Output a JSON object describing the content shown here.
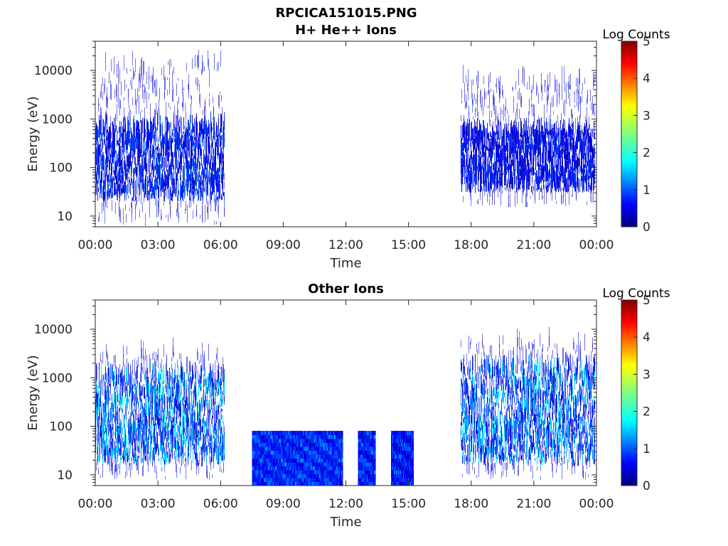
{
  "figure_title": "RPCICA151015.PNG",
  "chart_data": [
    {
      "type": "heatmap",
      "title": "H+ He++ Ions",
      "xlabel": "Time",
      "ylabel": "Energy (eV)",
      "x_scale": "time",
      "x_range": [
        "00:00",
        "24:00"
      ],
      "x_tick_labels": [
        "00:00",
        "03:00",
        "06:00",
        "09:00",
        "12:00",
        "15:00",
        "18:00",
        "21:00",
        "00:00"
      ],
      "y_scale": "log",
      "y_range": [
        6,
        40000
      ],
      "y_tick_labels": [
        "10",
        "100",
        "1000",
        "10000"
      ],
      "colorbar": {
        "label": "Log Counts",
        "range": [
          0,
          5
        ],
        "tick_labels": [
          "0",
          "1",
          "2",
          "3",
          "4",
          "5"
        ],
        "colormap": "jet"
      },
      "data_intervals": [
        {
          "start": "00:00",
          "end": "06:10",
          "core_energy_ev": [
            20,
            600
          ],
          "sparse_energy_ev": [
            6,
            13000
          ],
          "peak_log_counts": 1.2
        },
        {
          "start": "17:30",
          "end": "23:55",
          "core_energy_ev": [
            30,
            500
          ],
          "sparse_energy_ev": [
            15,
            6000
          ],
          "peak_log_counts": 1.0
        }
      ]
    },
    {
      "type": "heatmap",
      "title": "Other Ions",
      "xlabel": "Time",
      "ylabel": "Energy (eV)",
      "x_scale": "time",
      "x_range": [
        "00:00",
        "24:00"
      ],
      "x_tick_labels": [
        "00:00",
        "03:00",
        "06:00",
        "09:00",
        "12:00",
        "15:00",
        "18:00",
        "21:00",
        "00:00"
      ],
      "y_scale": "log",
      "y_range": [
        6,
        40000
      ],
      "y_tick_labels": [
        "10",
        "100",
        "1000",
        "10000"
      ],
      "colorbar": {
        "label": "Log Counts",
        "range": [
          0,
          5
        ],
        "tick_labels": [
          "0",
          "1",
          "2",
          "3",
          "4",
          "5"
        ],
        "colormap": "jet"
      },
      "data_intervals": [
        {
          "start": "00:00",
          "end": "06:10",
          "core_energy_ev": [
            15,
            1000
          ],
          "sparse_energy_ev": [
            8,
            3000
          ],
          "peak_log_counts": 2.0
        },
        {
          "start": "07:30",
          "end": "11:50",
          "core_energy_ev": [
            6,
            80
          ],
          "sparse_energy_ev": [
            6,
            80
          ],
          "peak_log_counts": 1.6
        },
        {
          "start": "12:35",
          "end": "13:25",
          "core_energy_ev": [
            6,
            80
          ],
          "sparse_energy_ev": [
            6,
            80
          ],
          "peak_log_counts": 1.5
        },
        {
          "start": "14:10",
          "end": "15:15",
          "core_energy_ev": [
            6,
            80
          ],
          "sparse_energy_ev": [
            6,
            80
          ],
          "peak_log_counts": 1.4
        },
        {
          "start": "17:30",
          "end": "23:55",
          "core_energy_ev": [
            15,
            1500
          ],
          "sparse_energy_ev": [
            8,
            5000
          ],
          "peak_log_counts": 1.9
        }
      ]
    }
  ]
}
